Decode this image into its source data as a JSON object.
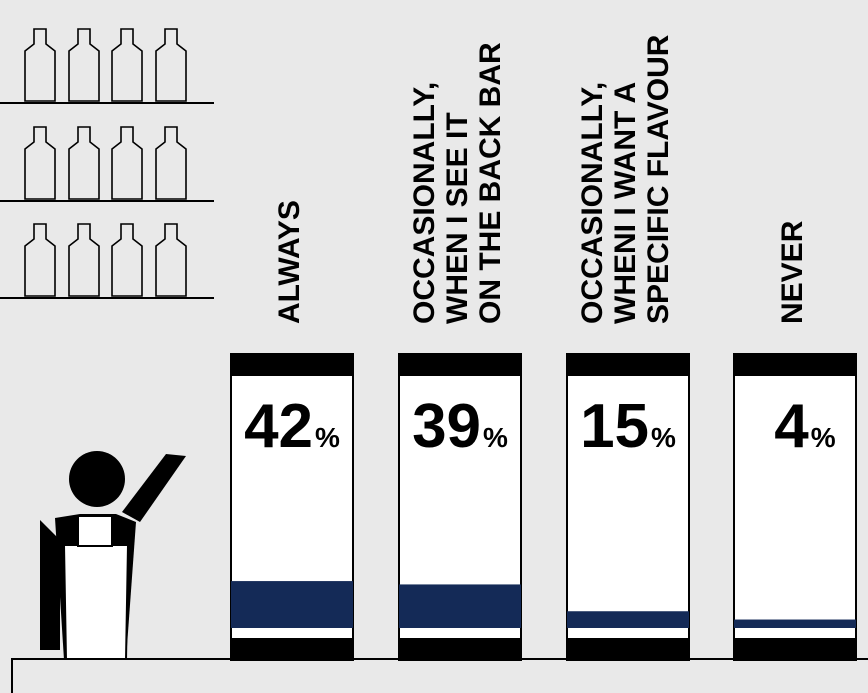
{
  "chart_data": {
    "type": "bar",
    "title": "",
    "xlabel": "",
    "ylabel": "",
    "ylim": [
      0,
      100
    ],
    "categories": [
      [
        "ALWAYS"
      ],
      [
        "OCCASIONALLY,",
        "WHEN I SEE IT",
        "ON THE BACK BAR"
      ],
      [
        "OCCASIONALLY,",
        "WHENI I WANT A",
        "SPECIFIC FLAVOUR"
      ],
      [
        "NEVER"
      ]
    ],
    "values": [
      42,
      39,
      15,
      4
    ],
    "value_suffix": "%",
    "grid": false,
    "legend": "none"
  },
  "colors": {
    "background": "#e9e9e9",
    "bar_fill": "#142a57",
    "ink": "#000000",
    "glass": "#ffffff"
  },
  "icons": [
    "bottle-shelf-icon",
    "bartender-icon"
  ]
}
